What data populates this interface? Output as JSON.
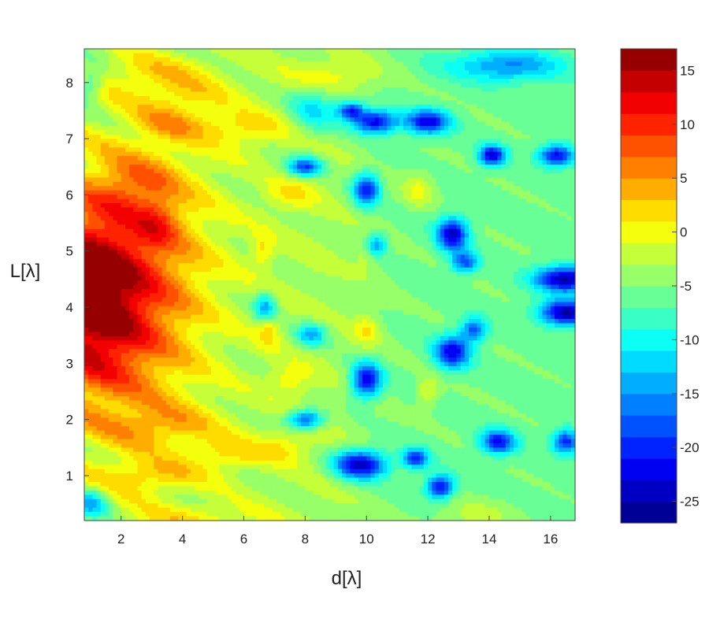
{
  "chart_data": {
    "type": "heatmap",
    "title": "",
    "xlabel": "d[λ]",
    "ylabel": "L[λ]",
    "xlim": [
      0.8,
      16.8
    ],
    "ylim": [
      0.2,
      8.6
    ],
    "x_ticks": [
      2,
      4,
      6,
      8,
      10,
      12,
      14,
      16
    ],
    "x_tick_labels": [
      "2",
      "4",
      "6",
      "8",
      "10",
      "12",
      "14",
      "16"
    ],
    "y_ticks": [
      1,
      2,
      3,
      4,
      5,
      6,
      7,
      8
    ],
    "y_tick_labels": [
      "1",
      "2",
      "3",
      "4",
      "5",
      "6",
      "7",
      "8"
    ],
    "colorbar": {
      "vmin": -27,
      "vmax": 17,
      "ticks": [
        15,
        10,
        5,
        0,
        -5,
        -10,
        -15,
        -20,
        -25
      ],
      "tick_labels": [
        "15",
        "10",
        "5",
        "0",
        "-5",
        "-10",
        "-15",
        "-20",
        "-25"
      ],
      "colormap": "jet"
    },
    "field": {
      "base": -3,
      "features": [
        {
          "x": 1.0,
          "y": 4.2,
          "sx": 1.3,
          "sy": 1.15,
          "v": 19
        },
        {
          "x": 2.2,
          "y": 4.1,
          "sx": 1.4,
          "sy": 2.0,
          "v": 5
        },
        {
          "x": 3.8,
          "y": 4.6,
          "sx": 1.2,
          "sy": 1.6,
          "v": 4
        },
        {
          "x": 2.5,
          "y": 6.2,
          "sx": 0.9,
          "sy": 0.35,
          "v": 5
        },
        {
          "x": 3.2,
          "y": 5.5,
          "sx": 0.5,
          "sy": 0.3,
          "v": 5
        },
        {
          "x": 3.6,
          "y": 7.3,
          "sx": 0.8,
          "sy": 0.22,
          "v": 5
        },
        {
          "x": 3.5,
          "y": 1.9,
          "sx": 1.3,
          "sy": 0.25,
          "v": 5
        },
        {
          "x": 3.0,
          "y": 1.0,
          "sx": 1.2,
          "sy": 0.2,
          "v": 5
        },
        {
          "x": 5.5,
          "y": 1.4,
          "sx": 0.8,
          "sy": 0.2,
          "v": 5
        },
        {
          "x": 4.0,
          "y": 7.8,
          "sx": 1.2,
          "sy": 0.2,
          "v": 4
        },
        {
          "x": 3.0,
          "y": 8.2,
          "sx": 1.5,
          "sy": 0.2,
          "v": 4
        },
        {
          "x": 4.5,
          "y": 0.2,
          "sx": 1.5,
          "sy": 0.2,
          "v": 4
        },
        {
          "x": 6.0,
          "y": 7.2,
          "sx": 1.2,
          "sy": 0.22,
          "v": 5
        },
        {
          "x": 6.6,
          "y": 5.0,
          "sx": 0.25,
          "sy": 0.2,
          "v": 5
        },
        {
          "x": 6.8,
          "y": 3.6,
          "sx": 0.25,
          "sy": 0.22,
          "v": 5
        },
        {
          "x": 7.5,
          "y": 2.7,
          "sx": 0.5,
          "sy": 0.2,
          "v": 4
        },
        {
          "x": 7.5,
          "y": 6.0,
          "sx": 0.6,
          "sy": 0.2,
          "v": 4
        },
        {
          "x": 7.3,
          "y": 1.5,
          "sx": 0.6,
          "sy": 0.2,
          "v": 4
        },
        {
          "x": 10.1,
          "y": 5.0,
          "sx": 0.3,
          "sy": 0.2,
          "v": 5
        },
        {
          "x": 10.0,
          "y": 3.6,
          "sx": 0.3,
          "sy": 0.2,
          "v": 5
        },
        {
          "x": 11.7,
          "y": 6.1,
          "sx": 0.35,
          "sy": 0.22,
          "v": 5
        },
        {
          "x": 12.0,
          "y": 2.5,
          "sx": 0.25,
          "sy": 0.2,
          "v": 5
        },
        {
          "x": 9.0,
          "y": 8.1,
          "sx": 1.0,
          "sy": 0.2,
          "v": 4
        },
        {
          "x": 13.5,
          "y": 0.3,
          "sx": 1.0,
          "sy": 0.2,
          "v": 3
        },
        {
          "x": 10.0,
          "y": 6.1,
          "sx": 0.3,
          "sy": 0.2,
          "v": -16
        },
        {
          "x": 10.3,
          "y": 5.1,
          "sx": 0.25,
          "sy": 0.15,
          "v": -13
        },
        {
          "x": 10.0,
          "y": 2.7,
          "sx": 0.35,
          "sy": 0.22,
          "v": -18
        },
        {
          "x": 9.8,
          "y": 1.2,
          "sx": 0.6,
          "sy": 0.18,
          "v": -20
        },
        {
          "x": 10.3,
          "y": 7.3,
          "sx": 0.5,
          "sy": 0.15,
          "v": -18
        },
        {
          "x": 9.5,
          "y": 7.5,
          "sx": 0.3,
          "sy": 0.12,
          "v": -15
        },
        {
          "x": 12.0,
          "y": 7.3,
          "sx": 0.5,
          "sy": 0.15,
          "v": -17
        },
        {
          "x": 12.8,
          "y": 5.3,
          "sx": 0.35,
          "sy": 0.2,
          "v": -19
        },
        {
          "x": 12.8,
          "y": 3.2,
          "sx": 0.4,
          "sy": 0.2,
          "v": -17
        },
        {
          "x": 16.5,
          "y": 4.5,
          "sx": 0.7,
          "sy": 0.16,
          "v": -20
        },
        {
          "x": 16.5,
          "y": 3.9,
          "sx": 0.6,
          "sy": 0.16,
          "v": -20
        },
        {
          "x": 14.1,
          "y": 6.7,
          "sx": 0.3,
          "sy": 0.13,
          "v": -18
        },
        {
          "x": 16.2,
          "y": 6.7,
          "sx": 0.4,
          "sy": 0.13,
          "v": -17
        },
        {
          "x": 14.3,
          "y": 1.6,
          "sx": 0.4,
          "sy": 0.15,
          "v": -16
        },
        {
          "x": 16.5,
          "y": 1.6,
          "sx": 0.3,
          "sy": 0.15,
          "v": -15
        },
        {
          "x": 12.4,
          "y": 0.8,
          "sx": 0.3,
          "sy": 0.15,
          "v": -17
        },
        {
          "x": 11.6,
          "y": 1.3,
          "sx": 0.3,
          "sy": 0.12,
          "v": -15
        },
        {
          "x": 8.0,
          "y": 6.5,
          "sx": 0.4,
          "sy": 0.12,
          "v": -15
        },
        {
          "x": 8.0,
          "y": 2.0,
          "sx": 0.4,
          "sy": 0.12,
          "v": -15
        },
        {
          "x": 14.6,
          "y": 8.3,
          "sx": 1.3,
          "sy": 0.2,
          "v": -10
        },
        {
          "x": 8.3,
          "y": 7.5,
          "sx": 0.6,
          "sy": 0.3,
          "v": -8
        },
        {
          "x": 1.0,
          "y": 0.5,
          "sx": 0.4,
          "sy": 0.2,
          "v": -10
        },
        {
          "x": 1.0,
          "y": 8.0,
          "sx": 0.3,
          "sy": 0.2,
          "v": -7
        },
        {
          "x": 8.2,
          "y": 3.5,
          "sx": 0.35,
          "sy": 0.15,
          "v": -10
        },
        {
          "x": 6.7,
          "y": 4.0,
          "sx": 0.25,
          "sy": 0.18,
          "v": -11
        },
        {
          "x": 13.5,
          "y": 3.6,
          "sx": 0.3,
          "sy": 0.15,
          "v": -12
        },
        {
          "x": 13.2,
          "y": 4.8,
          "sx": 0.3,
          "sy": 0.13,
          "v": -13
        }
      ],
      "ridges": {
        "amplitude": 3.2,
        "slope": -0.28,
        "period": 1.0
      },
      "right_side_cooling": {
        "start_x": 8.5,
        "amount": -2.5
      }
    }
  }
}
